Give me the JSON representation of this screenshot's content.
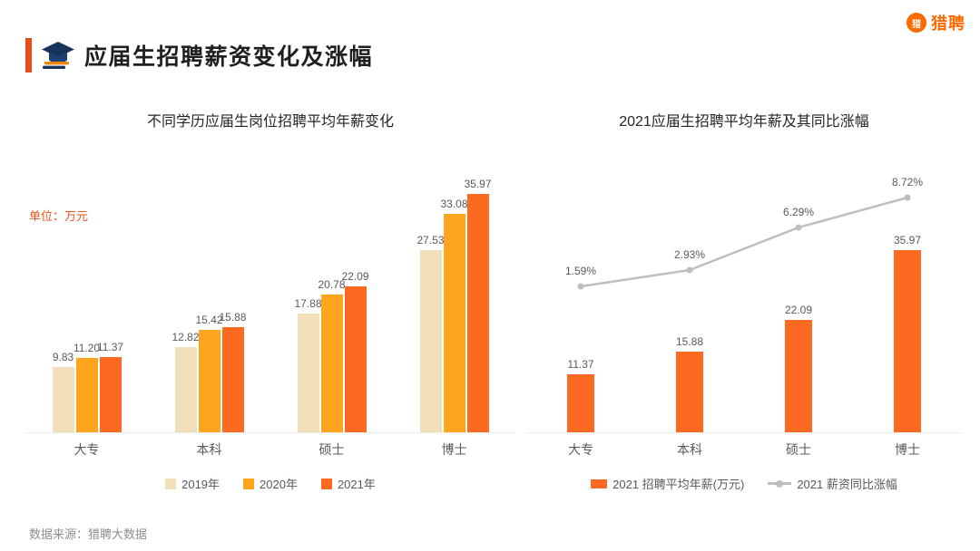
{
  "page": {
    "title": "应届生招聘薪资变化及涨幅",
    "logo_text": "猎聘",
    "logo_badge": "猎",
    "source": "数据来源：猎聘大数据"
  },
  "colors": {
    "accent": "#E84D18",
    "bar_2019": "#F0DFB9",
    "bar_2020": "#FFA41D",
    "bar_2021": "#FB6A20",
    "line_gray": "#BFBFBF"
  },
  "chart_data": [
    {
      "type": "bar",
      "title": "不同学历应届生岗位招聘平均年薪变化",
      "unit_label": "单位：万元",
      "categories": [
        "大专",
        "本科",
        "硕士",
        "博士"
      ],
      "series": [
        {
          "name": "2019年",
          "color": "#F0DFB9",
          "values": [
            9.83,
            12.82,
            17.88,
            27.53
          ]
        },
        {
          "name": "2020年",
          "color": "#FFA41D",
          "values": [
            11.2,
            15.42,
            20.78,
            33.08
          ]
        },
        {
          "name": "2021年",
          "color": "#FB6A20",
          "values": [
            11.37,
            15.88,
            22.09,
            35.97
          ]
        }
      ],
      "ylim": [
        0,
        40
      ],
      "grid": false,
      "legend_position": "bottom"
    },
    {
      "type": "bar+line",
      "title": "2021应届生招聘平均年薪及其同比涨幅",
      "categories": [
        "大专",
        "本科",
        "硕士",
        "博士"
      ],
      "series": [
        {
          "name": "2021 招聘平均年薪(万元)",
          "chart": "bar",
          "color": "#FB6A20",
          "values": [
            11.37,
            15.88,
            22.09,
            35.97
          ]
        },
        {
          "name": "2021 薪资同比涨幅",
          "chart": "line",
          "color": "#BFBFBF",
          "values": [
            1.59,
            2.93,
            6.29,
            8.72
          ],
          "value_labels": [
            "1.59%",
            "2.93%",
            "6.29%",
            "8.72%"
          ]
        }
      ],
      "ylim": [
        0,
        40
      ],
      "grid": false,
      "legend_position": "bottom"
    }
  ]
}
